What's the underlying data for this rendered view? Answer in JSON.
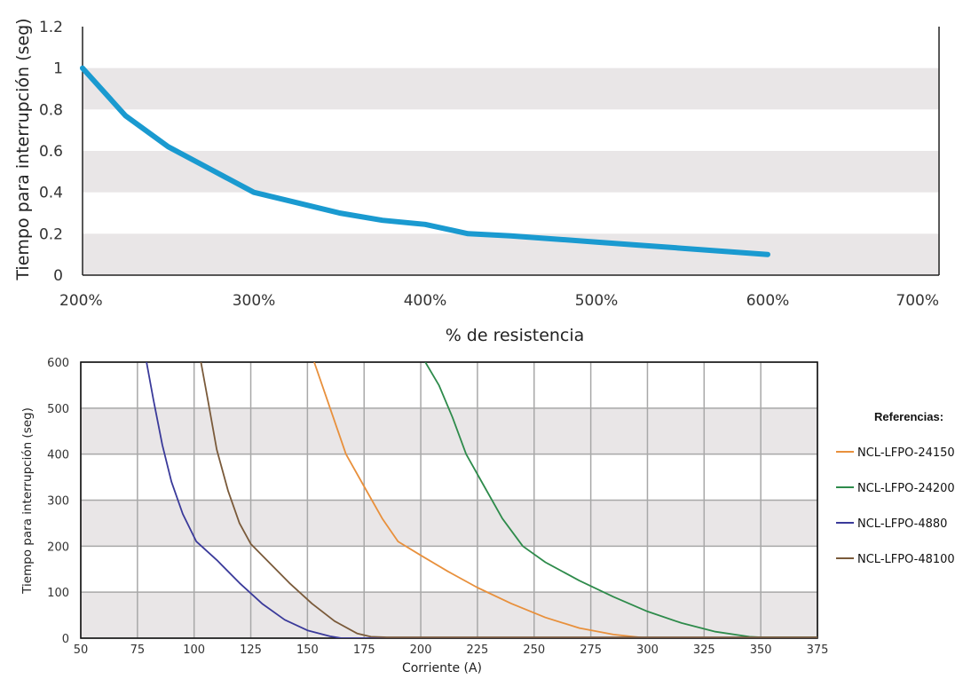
{
  "chart_data": [
    {
      "type": "line",
      "title": "",
      "xlabel": "% de resistencia",
      "ylabel": "Tiempo para interrupción (seg)",
      "xlim": [
        200,
        700
      ],
      "ylim": [
        0,
        1.2
      ],
      "x_ticks": [
        200,
        300,
        400,
        500,
        600,
        700
      ],
      "x_tick_labels": [
        "200%",
        "300%",
        "400%",
        "500%",
        "600%",
        "700%"
      ],
      "y_ticks": [
        0,
        0.2,
        0.4,
        0.6,
        0.8,
        1,
        1.2
      ],
      "y_tick_labels": [
        "0",
        "0.2",
        "0.4",
        "0.6",
        "0.8",
        "1",
        "1.2"
      ],
      "grid": "alternating horizontal bands",
      "band_color": "#e9e6e7",
      "series": [
        {
          "color": "#1a9ad0",
          "x": [
            200,
            225,
            250,
            275,
            300,
            325,
            350,
            375,
            400,
            425,
            450,
            475,
            500,
            525,
            550,
            575,
            600
          ],
          "y": [
            1.0,
            0.77,
            0.62,
            0.51,
            0.4,
            0.35,
            0.3,
            0.265,
            0.245,
            0.2,
            0.19,
            0.175,
            0.16,
            0.145,
            0.13,
            0.115,
            0.1
          ]
        }
      ]
    },
    {
      "type": "line",
      "title": "",
      "xlabel": "Corriente (A)",
      "ylabel": "Tiempo para interrupción (seg)",
      "xlim": [
        50,
        375
      ],
      "ylim": [
        0,
        600
      ],
      "x_ticks": [
        50,
        75,
        100,
        125,
        150,
        175,
        200,
        225,
        250,
        275,
        300,
        325,
        350,
        375
      ],
      "x_tick_labels": [
        "50",
        "75",
        "100",
        "125",
        "150",
        "175",
        "200",
        "225",
        "250",
        "275",
        "300",
        "325",
        "350",
        "375"
      ],
      "y_ticks": [
        0,
        100,
        200,
        300,
        400,
        500,
        600
      ],
      "y_tick_labels": [
        "0",
        "100",
        "200",
        "300",
        "400",
        "500",
        "600"
      ],
      "grid": true,
      "band_color": "#e9e6e7",
      "legend_title": "Referencias:",
      "legend_placement": "right",
      "series": [
        {
          "name": "NCL-LFPO-24150",
          "color": "#e8903c",
          "x": [
            153,
            160,
            167,
            175,
            183,
            190,
            200,
            212,
            225,
            240,
            255,
            270,
            285,
            300
          ],
          "y": [
            600,
            500,
            400,
            330,
            260,
            210,
            180,
            145,
            110,
            75,
            45,
            22,
            8,
            0
          ]
        },
        {
          "name": "NCL-LFPO-24200",
          "color": "#2e8b4b",
          "x": [
            202,
            208,
            214,
            220,
            228,
            236,
            245,
            255,
            270,
            285,
            300,
            315,
            330,
            345,
            350,
            375
          ],
          "y": [
            600,
            550,
            480,
            400,
            330,
            260,
            200,
            165,
            125,
            90,
            58,
            33,
            14,
            3,
            2,
            2
          ]
        },
        {
          "name": "NCL-LFPO-4880",
          "color": "#3a3a9a",
          "x": [
            79,
            82,
            86,
            90,
            95,
            101,
            110,
            120,
            130,
            140,
            150,
            160,
            165,
            175,
            375
          ],
          "y": [
            600,
            520,
            420,
            340,
            270,
            210,
            170,
            120,
            75,
            40,
            17,
            4,
            0,
            0,
            0
          ]
        },
        {
          "name": "NCL-LFPO-48100",
          "color": "#7a5a3a",
          "x": [
            103,
            106,
            110,
            115,
            120,
            125,
            133,
            142,
            152,
            162,
            172,
            178,
            185,
            375
          ],
          "y": [
            600,
            520,
            410,
            320,
            250,
            205,
            165,
            120,
            75,
            37,
            10,
            3,
            2,
            2
          ]
        }
      ]
    }
  ]
}
